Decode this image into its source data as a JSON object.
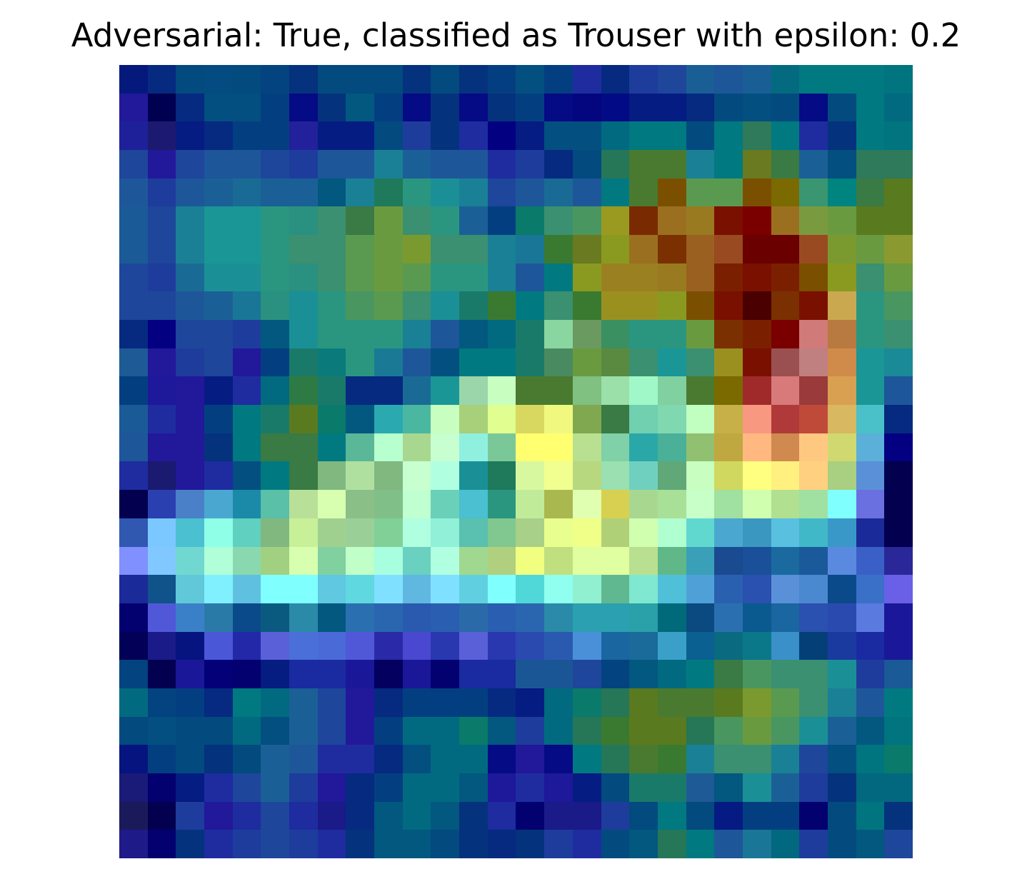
{
  "figure": {
    "title": "Adversarial: True, classified as Trouser with epsilon: 0.2"
  },
  "image": {
    "description_kind": "28x28 saliency heatmap (jet-like colormap) overlaid on Fashion-MNIST sample",
    "rows": 28,
    "cols": 28,
    "pixels": [
      [
        "#05197d",
        "#052a80",
        "#034a7f",
        "#044b81",
        "#034a7f",
        "#03437f",
        "#05327c",
        "#034a7f",
        "#034a7f",
        "#034a7f",
        "#05327c",
        "#034a7f",
        "#05327c",
        "#033f80",
        "#034f80",
        "#033f80",
        "#1e2ca0",
        "#052a80",
        "#1e3c9c",
        "#1e469b",
        "#1a5e96",
        "#1e569a",
        "#1a5e96",
        "#046a80",
        "#007a80",
        "#007a80",
        "#007a80",
        "#00747f"
      ],
      [
        "#22189a",
        "#000050",
        "#052a80",
        "#034f80",
        "#034f80",
        "#033f80",
        "#050a85",
        "#05327c",
        "#02587f",
        "#033f80",
        "#050a85",
        "#05327c",
        "#050a85",
        "#05327c",
        "#033f80",
        "#050a85",
        "#03067f",
        "#030a85",
        "#051c82",
        "#051c82",
        "#052a80",
        "#034a7f",
        "#034f80",
        "#034a7f",
        "#050a85",
        "#034a7f",
        "#007a80",
        "#026a80"
      ],
      [
        "#1e209a",
        "#1c1a70",
        "#051c82",
        "#052a80",
        "#033f80",
        "#033f80",
        "#22209a",
        "#051c82",
        "#051c82",
        "#034a7f",
        "#1e3c9c",
        "#05327c",
        "#1e2ca0",
        "#030081",
        "#051c82",
        "#034f80",
        "#034f80",
        "#026a80",
        "#007a80",
        "#007a80",
        "#034a7f",
        "#007a80",
        "#2e7a5a",
        "#007a80",
        "#1e2ca0",
        "#05327c",
        "#007a80",
        "#00747f"
      ],
      [
        "#1e469b",
        "#22189a",
        "#1e469b",
        "#1e569a",
        "#1e569a",
        "#1e469b",
        "#1e3c9c",
        "#1e569a",
        "#1e569a",
        "#1a8096",
        "#1a6096",
        "#1e569a",
        "#1e569a",
        "#1e2ca0",
        "#1e3c9c",
        "#052a80",
        "#034a7f",
        "#267658",
        "#4a7a30",
        "#4a7a30",
        "#1a8096",
        "#007a80",
        "#6a7a20",
        "#3a7a44",
        "#1a6096",
        "#034f80",
        "#2e7a5a",
        "#2e7a5a"
      ],
      [
        "#1e569a",
        "#1e3c9c",
        "#1e569a",
        "#1a6096",
        "#1a6a96",
        "#1a6096",
        "#1a6096",
        "#02587f",
        "#1a8096",
        "#1e7a5a",
        "#2a9680",
        "#1a9096",
        "#1a8096",
        "#1e469b",
        "#1e569a",
        "#1a6a96",
        "#1e569a",
        "#007a80",
        "#4a7a30",
        "#7a5000",
        "#5a9a50",
        "#5a9a50",
        "#7a5000",
        "#7a6a00",
        "#3a9670",
        "#00847f",
        "#3a7a44",
        "#5a7a20"
      ],
      [
        "#1a5a96",
        "#1e469b",
        "#1a8096",
        "#1a9696",
        "#1a9696",
        "#2a9680",
        "#2a9080",
        "#3a9070",
        "#3a7a44",
        "#6a9a40",
        "#3a9070",
        "#2a9680",
        "#1a6096",
        "#033f80",
        "#0a7a6a",
        "#3a9070",
        "#4a9660",
        "#9a9a20",
        "#7a2a00",
        "#9a7020",
        "#9a7a20",
        "#7a1000",
        "#7a0000",
        "#9a7020",
        "#7a9a40",
        "#6a9a40",
        "#5a7a20",
        "#5a7a20"
      ],
      [
        "#1a5a96",
        "#1e469b",
        "#1a8096",
        "#1a9696",
        "#1a9696",
        "#2a9680",
        "#3a9070",
        "#3a9070",
        "#5a9a50",
        "#6a9a40",
        "#7a9a30",
        "#3a9070",
        "#3a9070",
        "#1a8096",
        "#1a7696",
        "#3a7a30",
        "#6a7a20",
        "#8a9a20",
        "#9a7020",
        "#7a3000",
        "#9a6020",
        "#9a4a20",
        "#6a0000",
        "#6a0000",
        "#9a4a20",
        "#7a9a30",
        "#6a9a40",
        "#8a9a30"
      ],
      [
        "#1e469b",
        "#1e3c9c",
        "#1a6a96",
        "#1a9096",
        "#1a9096",
        "#2a9680",
        "#2a9080",
        "#3a9070",
        "#5a9a50",
        "#6a9a40",
        "#5a9a50",
        "#2a9680",
        "#2a9680",
        "#1a8096",
        "#1e569a",
        "#007a80",
        "#8a9a20",
        "#9a8020",
        "#9a8020",
        "#9a7a20",
        "#9a6020",
        "#7a2000",
        "#7a1000",
        "#7a2000",
        "#7a5000",
        "#8a9a20",
        "#3a9070",
        "#6a9a40"
      ],
      [
        "#1e469b",
        "#1e469b",
        "#1e569a",
        "#1a6096",
        "#1a7696",
        "#2a9080",
        "#1a9096",
        "#2a9680",
        "#4a9660",
        "#5a9a50",
        "#3a9070",
        "#1a9096",
        "#1a7a6a",
        "#3a7a30",
        "#007a80",
        "#3a9070",
        "#3a7a30",
        "#9a9020",
        "#9a9020",
        "#8a9a20",
        "#7a5000",
        "#7a1000",
        "#4a0000",
        "#7a3000",
        "#7a1000",
        "#caa850",
        "#2a9680",
        "#4a9660"
      ],
      [
        "#052a80",
        "#030081",
        "#1e469b",
        "#1e469b",
        "#1e3c9c",
        "#02587f",
        "#1a9096",
        "#2a9680",
        "#2a9680",
        "#2a9680",
        "#1a8096",
        "#1e569a",
        "#02587f",
        "#026a80",
        "#1a7a6a",
        "#8ad6a0",
        "#6a9a60",
        "#3a9060",
        "#2a9680",
        "#2a9680",
        "#6a9a40",
        "#7a3000",
        "#7a2000",
        "#7a0000",
        "#d07a7a",
        "#b87a40",
        "#2a9680",
        "#3a9070"
      ],
      [
        "#1e5a96",
        "#22189a",
        "#1e3c9c",
        "#1e469b",
        "#22189a",
        "#033f80",
        "#1a7a6a",
        "#0a7a7a",
        "#2a9680",
        "#1a7a96",
        "#1e569a",
        "#034f80",
        "#007a80",
        "#007a80",
        "#1a7a6a",
        "#4a8a60",
        "#6a9a40",
        "#5a8a40",
        "#3a9070",
        "#1a9696",
        "#3a9070",
        "#9a9020",
        "#7a1000",
        "#9a5050",
        "#c08080",
        "#d08a4a",
        "#1a9696",
        "#1a8a96"
      ],
      [
        "#033f80",
        "#1e189a",
        "#22189a",
        "#051c82",
        "#1e2ca0",
        "#026a80",
        "#2e7a44",
        "#1a7a6a",
        "#052a80",
        "#052a80",
        "#1a6a96",
        "#1a9696",
        "#9ad6aa",
        "#c8ffc0",
        "#4a7a30",
        "#4a7a30",
        "#80c080",
        "#9ae0a8",
        "#a0f8c8",
        "#80d0a0",
        "#4a7a30",
        "#7a6a00",
        "#a02a2a",
        "#d87a7a",
        "#9a3a3a",
        "#d8a050",
        "#1a9696",
        "#1e569a"
      ],
      [
        "#1a5a96",
        "#1e2ca0",
        "#22189a",
        "#033f80",
        "#007a80",
        "#1a7a6a",
        "#5a7a20",
        "#0a7a6a",
        "#02587f",
        "#2aaab0",
        "#4ab8a0",
        "#c8ffc0",
        "#a8d07a",
        "#e0ff90",
        "#d8d860",
        "#f0f880",
        "#80a850",
        "#3a7a44",
        "#70d0b0",
        "#80d8b0",
        "#c0ffc0",
        "#c8b048",
        "#f89880",
        "#b03a3a",
        "#c04a3a",
        "#d8b860",
        "#4ac0c8",
        "#052a80"
      ],
      [
        "#1e569a",
        "#22189a",
        "#22189a",
        "#05327c",
        "#007a80",
        "#3a7a44",
        "#3a7a44",
        "#007a80",
        "#5ab898",
        "#b8ffd0",
        "#a8d890",
        "#c8ffd0",
        "#90f0e0",
        "#7ac898",
        "#ffff70",
        "#ffff70",
        "#b8e090",
        "#80d0a8",
        "#2aa8a8",
        "#4ab098",
        "#90c070",
        "#c0a840",
        "#ffb880",
        "#d08a50",
        "#ffc880",
        "#d0d870",
        "#5ab0d8",
        "#030081"
      ],
      [
        "#1e2ca0",
        "#1a1a70",
        "#22189a",
        "#1e2ca0",
        "#034f80",
        "#007a80",
        "#3a7a44",
        "#80b880",
        "#b0e0a0",
        "#80b880",
        "#c8ffd0",
        "#b0ffe0",
        "#1a9096",
        "#1e7a5a",
        "#d8f8a0",
        "#f0ff90",
        "#b8d880",
        "#9ae0b0",
        "#70d0c0",
        "#60a878",
        "#c8ffc0",
        "#d0d860",
        "#ffff80",
        "#fff080",
        "#ffd080",
        "#a8d080",
        "#5a90d8",
        "#030050"
      ],
      [
        "#030050",
        "#2a40b0",
        "#4a80c8",
        "#4aa8d0",
        "#1a8aa8",
        "#5ac0a8",
        "#b8e098",
        "#d8ffb0",
        "#8ac088",
        "#80c088",
        "#c0ffd0",
        "#6ad0b8",
        "#4ac0d0",
        "#2a9680",
        "#c0ec9a",
        "#aab850",
        "#e0ffb0",
        "#d8d050",
        "#a8d890",
        "#a8e098",
        "#c8ffc8",
        "#a0e0a0",
        "#d0ffb0",
        "#b0e090",
        "#a0e0a0",
        "#80ffff",
        "#6a70e0",
        "#030050"
      ],
      [
        "#3058b0",
        "#7ac8ff",
        "#4ac0d0",
        "#90ffe8",
        "#60d0c0",
        "#80b880",
        "#c8f098",
        "#a0d090",
        "#9ad098",
        "#80d098",
        "#b0ffe0",
        "#90f0d8",
        "#5ac0b0",
        "#80c890",
        "#a8d088",
        "#e8ff90",
        "#f0ff88",
        "#b0d078",
        "#d0ffb0",
        "#b0ffd0",
        "#60d8d0",
        "#4aa8d0",
        "#3a98c0",
        "#5ac0e0",
        "#40b8c8",
        "#3a98c8",
        "#1a2a98",
        "#030050"
      ],
      [
        "#8090ff",
        "#80c8ff",
        "#70d8d0",
        "#b0ffd8",
        "#8ad8b0",
        "#a0d080",
        "#d8ffb0",
        "#80d0a0",
        "#c0ffc8",
        "#a8ffe0",
        "#6ad0c0",
        "#b0ffe0",
        "#a0d890",
        "#b0d080",
        "#f0ff80",
        "#c0e080",
        "#e0ffa0",
        "#e0ffa0",
        "#b8e090",
        "#60b888",
        "#3aa0b8",
        "#1a4a90",
        "#1a509a",
        "#1a6aa0",
        "#1a5a9a",
        "#5a8ae0",
        "#3a60c8",
        "#2a2898"
      ],
      [
        "#1a2a98",
        "#10528a",
        "#60c8d8",
        "#80f0ff",
        "#60c0e0",
        "#80ffff",
        "#80ffff",
        "#60c8e0",
        "#60d8e0",
        "#80e0ff",
        "#60b8e0",
        "#80e0ff",
        "#60d0e0",
        "#80ffff",
        "#50d8d8",
        "#90fff0",
        "#90f0d0",
        "#60b890",
        "#80e8d0",
        "#50c0d8",
        "#50a0d8",
        "#2a60b0",
        "#2a50b0",
        "#5a90d8",
        "#4a88d0",
        "#0a4a8a",
        "#3a70c8",
        "#6a60e8"
      ],
      [
        "#030070",
        "#5058d8",
        "#3a80c8",
        "#2a7aa8",
        "#0a4a8a",
        "#0a5a80",
        "#2a8aa8",
        "#02587f",
        "#2a70b0",
        "#2a66b0",
        "#2a5ab0",
        "#2a5eb0",
        "#2a6aa8",
        "#2a5eb0",
        "#2a66b0",
        "#2a8aa8",
        "#2aa0b0",
        "#2aa0b0",
        "#2aa0a8",
        "#006a7a",
        "#0a4a80",
        "#2a70b0",
        "#0a5a90",
        "#1a66a0",
        "#2a50b0",
        "#2a4ab0",
        "#5a7ae0",
        "#1a1898"
      ],
      [
        "#030058",
        "#1a1a88",
        "#05147f",
        "#4a58d8",
        "#2228a8",
        "#5a60d8",
        "#4a70d8",
        "#4a6ad8",
        "#5058d8",
        "#2a2aa8",
        "#4a48d0",
        "#2a38b0",
        "#5a60d8",
        "#2a38b0",
        "#2a4ab0",
        "#2a5ab0",
        "#4a90d8",
        "#1a66a0",
        "#1a6a9a",
        "#3aa0c8",
        "#0a6090",
        "#0a6a80",
        "#0a7888",
        "#3a90c8",
        "#053f78",
        "#1a3aa0",
        "#1a2aa0",
        "#1a1898"
      ],
      [
        "#03437f",
        "#030050",
        "#1a1898",
        "#030078",
        "#030070",
        "#051c80",
        "#1a2aa0",
        "#1a2aa0",
        "#1a1898",
        "#030060",
        "#1a1898",
        "#030070",
        "#1a2aa0",
        "#1a2aa0",
        "#1a5696",
        "#1a5696",
        "#1e469b",
        "#03437f",
        "#02587f",
        "#026a80",
        "#007a80",
        "#3a7a44",
        "#4a9660",
        "#3a9070",
        "#3a9070",
        "#1a9096",
        "#1e3c9c",
        "#1a5a96"
      ],
      [
        "#026a80",
        "#03437f",
        "#033f80",
        "#052a80",
        "#007a80",
        "#026a80",
        "#1a6096",
        "#1e469b",
        "#22189a",
        "#052a80",
        "#033f80",
        "#033f80",
        "#033f80",
        "#052a80",
        "#051c82",
        "#026a80",
        "#0a7a6a",
        "#267658",
        "#5a7a20",
        "#4a7a30",
        "#4a7a30",
        "#5a7a20",
        "#7a9a30",
        "#5a9a50",
        "#3a9070",
        "#1a8096",
        "#1e569a",
        "#007a80"
      ],
      [
        "#034a7f",
        "#034f80",
        "#034a7f",
        "#034a7f",
        "#026a80",
        "#034f80",
        "#1a6096",
        "#1e469b",
        "#22189a",
        "#033f80",
        "#026a80",
        "#026a80",
        "#0a7a6a",
        "#02587f",
        "#1e3c9c",
        "#026a80",
        "#267658",
        "#3a7a30",
        "#5a7a20",
        "#5a7a20",
        "#267658",
        "#4a9660",
        "#6a9a40",
        "#4a9660",
        "#1a9096",
        "#1a6096",
        "#02587f",
        "#00747f"
      ],
      [
        "#05147f",
        "#033f80",
        "#034a7f",
        "#05327c",
        "#034a7f",
        "#1a6096",
        "#1e569a",
        "#1e2ca0",
        "#1e2ca0",
        "#052a80",
        "#034f80",
        "#026a80",
        "#026a80",
        "#050a85",
        "#22189a",
        "#050a85",
        "#007a80",
        "#267658",
        "#4a7a30",
        "#3a7a30",
        "#1a8096",
        "#3a9070",
        "#3a9070",
        "#1a8096",
        "#1e469b",
        "#034f80",
        "#00747f",
        "#0a7a6a"
      ],
      [
        "#1a1a78",
        "#030070",
        "#051c82",
        "#1e2ca0",
        "#1e469b",
        "#1a6096",
        "#1e3c9c",
        "#22189a",
        "#052a80",
        "#033f80",
        "#026a80",
        "#026a80",
        "#02587f",
        "#1e189a",
        "#1e2ca0",
        "#1e189a",
        "#051c82",
        "#034a7f",
        "#1a7a6a",
        "#1a7a6a",
        "#1e5a96",
        "#02587f",
        "#1a9096",
        "#1a6096",
        "#1e3c9c",
        "#05327c",
        "#02687f",
        "#02687f"
      ],
      [
        "#1a1a5a",
        "#030050",
        "#1e3c9c",
        "#22189a",
        "#1e2ca0",
        "#1e469b",
        "#1e2ca0",
        "#1a1a88",
        "#052a80",
        "#02587f",
        "#026a80",
        "#02587f",
        "#05327c",
        "#1e2ca0",
        "#030070",
        "#1a1a88",
        "#1a1a88",
        "#1e3c9c",
        "#034a7f",
        "#007a80",
        "#034a7f",
        "#051a82",
        "#033f80",
        "#033f80",
        "#030070",
        "#034a7f",
        "#00747f",
        "#05327c"
      ],
      [
        "#1e1a88",
        "#030070",
        "#05327c",
        "#1e2ca0",
        "#1e3c9c",
        "#1e469b",
        "#1e3c9c",
        "#1e2ca0",
        "#05327c",
        "#02587f",
        "#02587f",
        "#034a7f",
        "#05327c",
        "#052a80",
        "#05327c",
        "#1e3c9c",
        "#1e2ca0",
        "#034a7f",
        "#02587f",
        "#267658",
        "#007a80",
        "#1e569a",
        "#1a7696",
        "#02687f",
        "#1e3c9c",
        "#034a7f",
        "#02587f",
        "#1e469b"
      ]
    ]
  }
}
